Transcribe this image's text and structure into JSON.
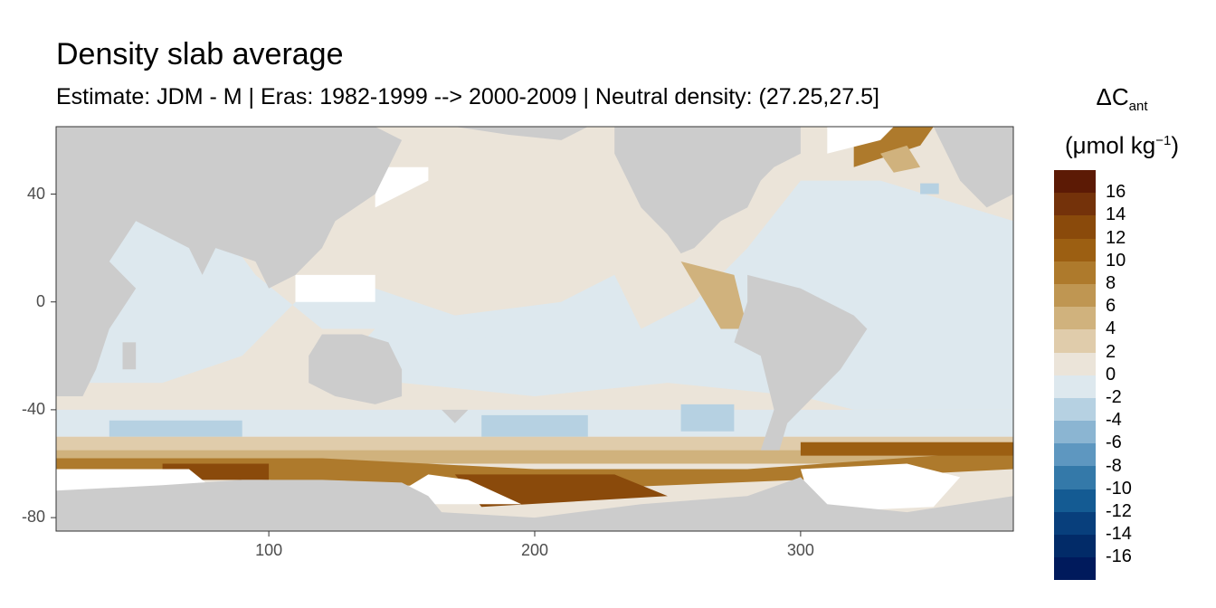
{
  "title": "Density slab average",
  "subtitle": "Estimate: JDM - M | Eras: 1982-1999 --> 2000-2009 | Neutral density: (27.25,27.5]",
  "colors": {
    "land": "#cccccc",
    "missing_ocean": "#ffffff",
    "scale": [
      "#5c1a05",
      "#74320a",
      "#8a4a0b",
      "#9c5f12",
      "#ae7a2c",
      "#bf9652",
      "#d0b27d",
      "#e0ccab",
      "#ebe4d9",
      "#dde8ee",
      "#b6d1e2",
      "#8bb5d2",
      "#5e97c0",
      "#3479a9",
      "#145b93",
      "#083f7c",
      "#022b68",
      "#001a5c"
    ]
  },
  "chart_data": {
    "type": "heatmap",
    "title": "Density slab average",
    "subtitle": "Estimate: JDM - M | Eras: 1982-1999 --> 2000-2009 | Neutral density: (27.25,27.5]",
    "xlabel": "",
    "ylabel": "",
    "xlim": [
      20,
      380
    ],
    "ylim": [
      -85,
      65
    ],
    "x_ticks": [
      100,
      200,
      300
    ],
    "y_ticks": [
      40,
      0,
      -40,
      -80
    ],
    "grid": false,
    "legend": {
      "position": "right",
      "title_main": "ΔC",
      "title_sub": "ant",
      "unit_prefix": "(μmol kg",
      "unit_sup": "−1",
      "unit_suffix": ")",
      "labels": [
        "16",
        "14",
        "12",
        "10",
        "8",
        "6",
        "4",
        "2",
        "0",
        "-2",
        "-4",
        "-6",
        "-8",
        "-10",
        "-12",
        "-14",
        "-16"
      ]
    },
    "bins": [
      18,
      16,
      14,
      12,
      10,
      8,
      6,
      4,
      2,
      0,
      -2,
      -4,
      -6,
      -8,
      -10,
      -12,
      -14,
      -16,
      -18
    ]
  }
}
